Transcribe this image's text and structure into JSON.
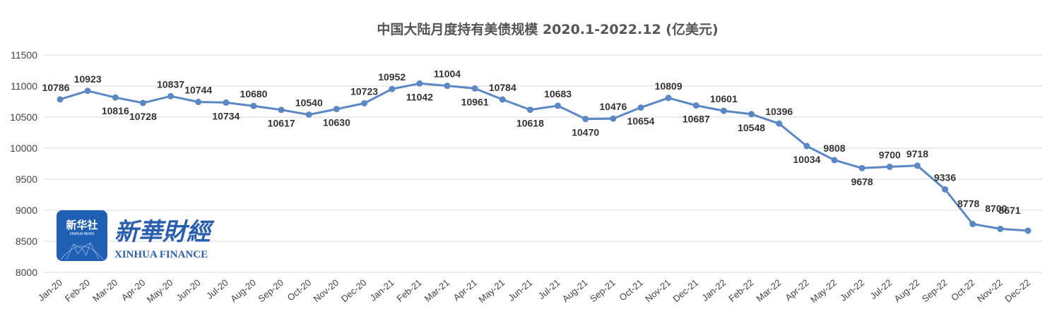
{
  "chart_data": {
    "type": "line",
    "title": "中国大陆月度持有美债规模 2020.1-2022.12 (亿美元)",
    "xlabel": "",
    "ylabel": "",
    "ylim": [
      8000,
      11500
    ],
    "yticks": [
      8000,
      8500,
      9000,
      9500,
      10000,
      10500,
      11000,
      11500
    ],
    "grid": true,
    "legend": "none",
    "line_color": "#5b87c5",
    "categories": [
      "Jan-20",
      "Feb-20",
      "Mar-20",
      "Apr-20",
      "May-20",
      "Jun-20",
      "Jul-20",
      "Aug-20",
      "Sep-20",
      "Oct-20",
      "Nov-20",
      "Dec-20",
      "Jan-21",
      "Feb-21",
      "Mar-21",
      "Apr-21",
      "May-21",
      "Jun-21",
      "Jul-21",
      "Aug-21",
      "Sep-21",
      "Oct-21",
      "Nov-21",
      "Dec-21",
      "Jan-22",
      "Feb-22",
      "Mar-22",
      "Apr-22",
      "May-22",
      "Jun-22",
      "Jul-22",
      "Aug-22",
      "Sep-22",
      "Oct-22",
      "Nov-22",
      "Dec-22"
    ],
    "series": [
      {
        "values": [
          10786,
          10923,
          10816,
          10728,
          10837,
          10744,
          10734,
          10680,
          10617,
          10540,
          10630,
          10723,
          10952,
          11042,
          11004,
          10961,
          10784,
          10618,
          10683,
          10470,
          10476,
          10654,
          10809,
          10687,
          10601,
          10548,
          10396,
          10034,
          9808,
          9678,
          9700,
          9718,
          9336,
          8778,
          8700,
          8671
        ]
      }
    ]
  },
  "watermark": {
    "badge_cn": "新华社",
    "badge_en": "XINHUA NEWS",
    "brand_cn": "新華財經",
    "brand_en": "XINHUA FINANCE",
    "badge_color": "#1f5fb4",
    "brand_color": "#2a5fb0"
  }
}
